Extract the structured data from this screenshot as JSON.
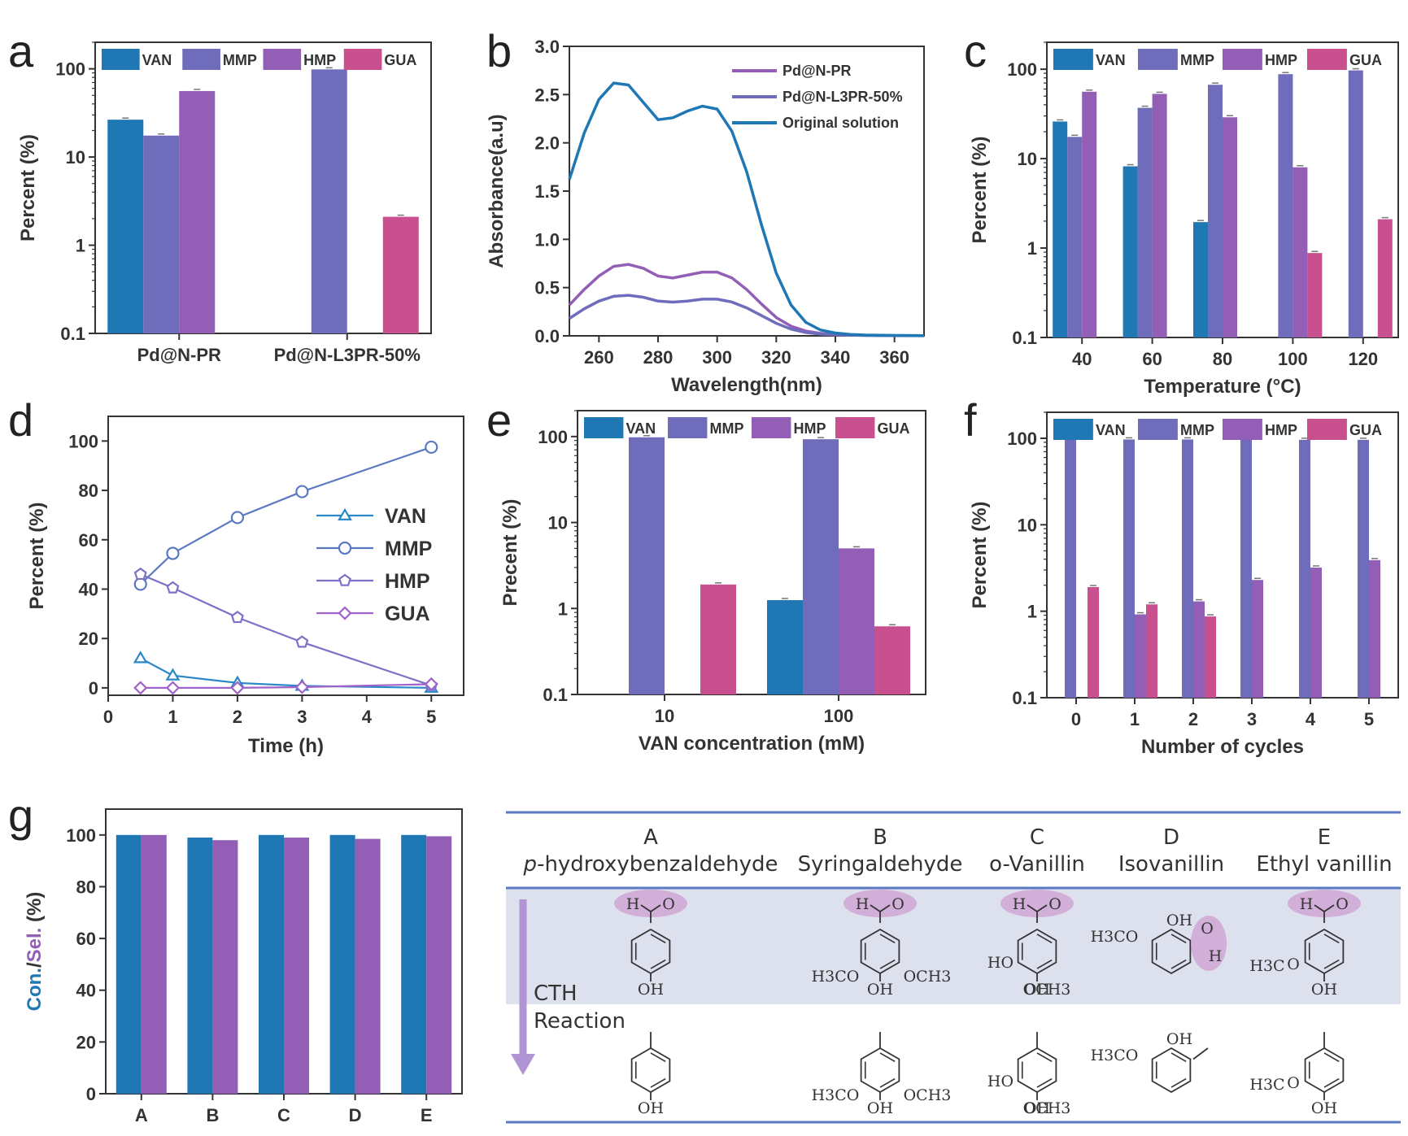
{
  "colors": {
    "VAN": "#1f77b4",
    "MMP": "#6f6cbb",
    "HMP": "#935fb6",
    "GUA": "#c9508f",
    "bandfill": "#dde1ee",
    "rule": "#5a79c2",
    "highlight": "#ce9dd2",
    "arrow": "#b194d3"
  },
  "panels": {
    "a": "a",
    "b": "b",
    "c": "c",
    "d": "d",
    "e": "e",
    "f": "f",
    "g": "g"
  },
  "chart_data": [
    {
      "panel": "a",
      "type": "bar",
      "scale": "log",
      "ylabel": "Percent (%)",
      "ylim": [
        0.1,
        200
      ],
      "yticks": [
        "0.1",
        "1",
        "10",
        "100"
      ],
      "categories": [
        "Pd@N-PR",
        "Pd@N-L3PR-50%"
      ],
      "series": [
        {
          "name": "VAN",
          "values": [
            26.5,
            null
          ]
        },
        {
          "name": "MMP",
          "values": [
            17.5,
            98.5
          ]
        },
        {
          "name": "HMP",
          "values": [
            56,
            null
          ]
        },
        {
          "name": "GUA",
          "values": [
            null,
            2.1
          ]
        }
      ],
      "legend": "top"
    },
    {
      "panel": "b",
      "type": "line",
      "xlabel": "Wavelength(nm)",
      "ylabel": "Absorbance(a.u)",
      "xlim": [
        250,
        370
      ],
      "ylim": [
        0,
        3.0
      ],
      "xticks": [
        "260",
        "280",
        "300",
        "320",
        "340",
        "360"
      ],
      "yticks": [
        "0.0",
        "0.5",
        "1.0",
        "1.5",
        "2.0",
        "2.5",
        "3.0"
      ],
      "series": [
        {
          "name": "Pd@N-PR",
          "x": [
            250,
            255,
            260,
            265,
            270,
            275,
            280,
            285,
            290,
            295,
            300,
            305,
            310,
            315,
            320,
            325,
            330,
            335,
            340,
            350,
            360,
            370
          ],
          "y": [
            0.32,
            0.48,
            0.62,
            0.72,
            0.74,
            0.7,
            0.62,
            0.6,
            0.63,
            0.66,
            0.66,
            0.6,
            0.48,
            0.33,
            0.19,
            0.1,
            0.05,
            0.025,
            0.012,
            0.005,
            0.003,
            0.002
          ]
        },
        {
          "name": "Pd@N-L3PR-50%",
          "x": [
            250,
            255,
            260,
            265,
            270,
            275,
            280,
            285,
            290,
            295,
            300,
            305,
            310,
            315,
            320,
            325,
            330,
            335,
            340,
            350,
            360,
            370
          ],
          "y": [
            0.18,
            0.28,
            0.36,
            0.41,
            0.42,
            0.4,
            0.36,
            0.35,
            0.36,
            0.38,
            0.38,
            0.35,
            0.29,
            0.21,
            0.13,
            0.07,
            0.035,
            0.018,
            0.01,
            0.004,
            0.002,
            0.001
          ]
        },
        {
          "name": "Original solution",
          "x": [
            250,
            255,
            260,
            265,
            270,
            275,
            280,
            285,
            290,
            295,
            300,
            305,
            310,
            315,
            320,
            325,
            330,
            335,
            340,
            345,
            350,
            360,
            370
          ],
          "y": [
            1.62,
            2.1,
            2.45,
            2.62,
            2.6,
            2.42,
            2.24,
            2.26,
            2.33,
            2.38,
            2.35,
            2.12,
            1.7,
            1.15,
            0.65,
            0.32,
            0.14,
            0.06,
            0.03,
            0.015,
            0.008,
            0.004,
            0.002
          ]
        }
      ],
      "legend": "top-right"
    },
    {
      "panel": "c",
      "type": "bar",
      "scale": "log",
      "xlabel": "Temperature (°C)",
      "ylabel": "Percent (%)",
      "ylim": [
        0.1,
        200
      ],
      "yticks": [
        "0.1",
        "1",
        "10",
        "100"
      ],
      "categories": [
        "40",
        "60",
        "80",
        "100",
        "120"
      ],
      "series": [
        {
          "name": "VAN",
          "values": [
            26,
            8.2,
            1.95,
            null,
            null
          ]
        },
        {
          "name": "MMP",
          "values": [
            17.5,
            37,
            67,
            88,
            97
          ]
        },
        {
          "name": "HMP",
          "values": [
            56,
            53,
            29,
            8,
            null
          ]
        },
        {
          "name": "GUA",
          "values": [
            null,
            null,
            null,
            0.88,
            2.1
          ]
        }
      ],
      "legend": "top"
    },
    {
      "panel": "d",
      "type": "line",
      "xlabel": "Time (h)",
      "ylabel": "Percent (%)",
      "xlim": [
        0,
        5.5
      ],
      "ylim": [
        -3,
        110
      ],
      "xticks": [
        "0",
        "1",
        "2",
        "3",
        "4",
        "5"
      ],
      "yticks": [
        "0",
        "20",
        "40",
        "60",
        "80",
        "100"
      ],
      "x": [
        0.5,
        1,
        2,
        3,
        5
      ],
      "series": [
        {
          "name": "VAN",
          "marker": "triangle",
          "values": [
            12,
            5,
            2,
            0.8,
            0
          ]
        },
        {
          "name": "MMP",
          "marker": "circle",
          "values": [
            42,
            54.5,
            69,
            79.5,
            97.5
          ]
        },
        {
          "name": "HMP",
          "marker": "pentagon",
          "values": [
            46,
            40.5,
            28.5,
            18.5,
            1
          ]
        },
        {
          "name": "GUA",
          "marker": "diamond",
          "values": [
            0,
            0,
            0,
            0.3,
            1.5
          ]
        }
      ],
      "legend": "right"
    },
    {
      "panel": "e",
      "type": "bar",
      "scale": "log",
      "xlabel": "VAN concentration (mM)",
      "ylabel": "Precent (%)",
      "ylim": [
        0.1,
        200
      ],
      "yticks": [
        "0.1",
        "1",
        "10",
        "100"
      ],
      "categories": [
        "10",
        "100"
      ],
      "series": [
        {
          "name": "VAN",
          "values": [
            null,
            1.25
          ]
        },
        {
          "name": "MMP",
          "values": [
            98,
            93
          ]
        },
        {
          "name": "HMP",
          "values": [
            null,
            5
          ]
        },
        {
          "name": "GUA",
          "values": [
            1.9,
            0.62
          ]
        }
      ],
      "legend": "top"
    },
    {
      "panel": "f",
      "type": "bar",
      "scale": "log",
      "xlabel": "Number of cycles",
      "ylabel": "Percent (%)",
      "ylim": [
        0.1,
        200
      ],
      "yticks": [
        "0.1",
        "1",
        "10",
        "100"
      ],
      "categories": [
        "0",
        "1",
        "2",
        "3",
        "4",
        "5"
      ],
      "series": [
        {
          "name": "VAN",
          "values": [
            null,
            null,
            null,
            null,
            null,
            null
          ]
        },
        {
          "name": "MMP",
          "values": [
            98,
            97,
            97,
            97,
            96,
            96
          ]
        },
        {
          "name": "HMP",
          "values": [
            null,
            0.92,
            1.3,
            2.3,
            3.2,
            3.9
          ]
        },
        {
          "name": "GUA",
          "values": [
            1.9,
            1.2,
            0.87,
            null,
            null,
            null
          ]
        }
      ],
      "legend": "top"
    },
    {
      "panel": "g",
      "type": "bar",
      "ylabel_parts": [
        "Con.",
        "/",
        "Sel.",
        " (%)"
      ],
      "ylim": [
        0,
        110
      ],
      "yticks": [
        "0",
        "20",
        "40",
        "60",
        "80",
        "100"
      ],
      "categories": [
        "A",
        "B",
        "C",
        "D",
        "E"
      ],
      "series": [
        {
          "values": [
            100,
            99,
            100,
            100,
            100
          ]
        },
        {
          "values": [
            100,
            98,
            99,
            98.5,
            99.5
          ]
        }
      ]
    }
  ],
  "table": {
    "columns": [
      {
        "letter": "A",
        "name": "hydroxybenzaldehyde",
        "prefix": "p-"
      },
      {
        "letter": "B",
        "name": "Syringaldehyde",
        "prefix": ""
      },
      {
        "letter": "C",
        "name": "o-Vanillin",
        "prefix": ""
      },
      {
        "letter": "D",
        "name": "Isovanillin",
        "prefix": ""
      },
      {
        "letter": "E",
        "name": "Ethyl vanillin",
        "prefix": ""
      }
    ],
    "reaction_label_1": "CTH",
    "reaction_label_2": "Reaction",
    "chem": {
      "OH": "OH",
      "H": "H",
      "O": "O",
      "H3CO": "H3CO",
      "OCH3": "OCH3",
      "HO": "HO",
      "H3C": "H3C"
    }
  }
}
